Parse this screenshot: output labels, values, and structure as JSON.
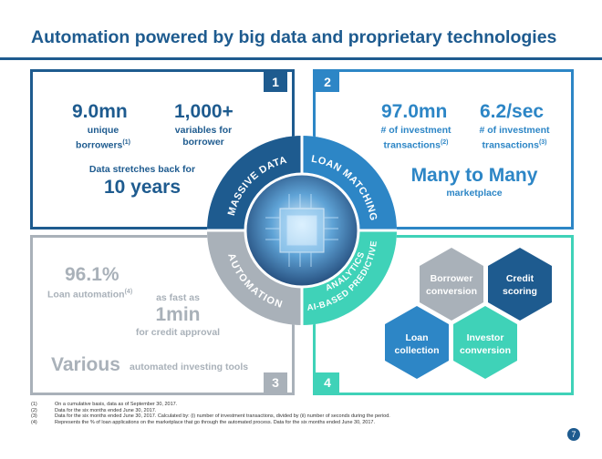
{
  "title": "Automation powered by big data and proprietary technologies",
  "box1": {
    "number": "1",
    "stat1_value": "9.0mn",
    "stat1_label_l1": "unique",
    "stat1_label_l2": "borrowers",
    "stat1_sup": "(1)",
    "stat2_value": "1,000+",
    "stat2_label_l1": "variables for",
    "stat2_label_l2": "borrower",
    "sub_label": "Data stretches back for",
    "sub_value": "10 years"
  },
  "box2": {
    "number": "2",
    "stat1_value": "97.0mn",
    "stat1_label_l1": "# of investment",
    "stat1_label_l2": "transactions",
    "stat1_sup": "(2)",
    "stat2_value": "6.2/sec",
    "stat2_label_l1": "# of investment",
    "stat2_label_l2": "transactions",
    "stat2_sup": "(3)",
    "headline": "Many to Many",
    "headline_sub": "marketplace"
  },
  "box3": {
    "number": "3",
    "stat_value": "96.1%",
    "stat_label": "Loan automation",
    "stat_sup": "(4)",
    "fast_label": "as fast as",
    "fast_value": "1min",
    "fast_sub": "for credit approval",
    "various": "Various",
    "various_sub": "automated investing tools"
  },
  "box4": {
    "number": "4",
    "hexes": [
      {
        "line1": "Borrower",
        "line2": "conversion",
        "color": "#a9b1b9"
      },
      {
        "line1": "Credit",
        "line2": "scoring",
        "color": "#1e5b8f"
      },
      {
        "line1": "Loan",
        "line2": "collection",
        "color": "#2d86c6"
      },
      {
        "line1": "Investor",
        "line2": "conversion",
        "color": "#3fd2b8"
      }
    ]
  },
  "wheel": {
    "q1": "MASSIVE DATA",
    "q2": "LOAN MATCHING",
    "q3": "AUTOMATION",
    "q4a": "AI-BASED PREDICTIVE",
    "q4b": "ANALYTICS",
    "colors": {
      "q1": "#1e5b8f",
      "q2": "#2d86c6",
      "q3": "#a9b1b9",
      "q4": "#3fd2b8"
    }
  },
  "footnotes": [
    {
      "n": "(1)",
      "text": "On a cumulative basis, data as of September 30, 2017."
    },
    {
      "n": "(2)",
      "text": "Data for the six months ended June 30, 2017."
    },
    {
      "n": "(3)",
      "text": "Data for the six months ended June 30, 2017. Calculated by: (i) number of investment transactions, divided by (ii) number of seconds during the period."
    },
    {
      "n": "(4)",
      "text": "Represents the % of loan applications on the marketplace that go through the automated process. Data for the six months ended June 30, 2017."
    }
  ],
  "page_number": "7"
}
